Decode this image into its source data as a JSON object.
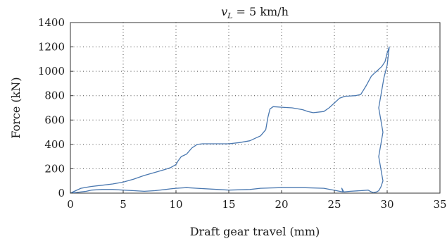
{
  "chart_data": {
    "type": "line",
    "title": "v_L = 5 km/h",
    "title_parts": {
      "symbol": "v",
      "subscript": "L",
      "rest": " = 5 km/h"
    },
    "xlabel": "Draft gear travel (mm)",
    "ylabel": "Force (kN)",
    "xlim": [
      0,
      35
    ],
    "ylim": [
      0,
      1400
    ],
    "xticks": [
      0,
      5,
      10,
      15,
      20,
      25,
      30,
      35
    ],
    "yticks": [
      0,
      200,
      400,
      600,
      800,
      1000,
      1200,
      1400
    ],
    "grid": true,
    "legend": "none",
    "series": [
      {
        "color": "#4a78b0",
        "x": [
          0,
          0.5,
          1,
          2,
          3,
          4,
          5,
          6,
          7,
          8,
          9,
          9.5,
          10,
          10.2,
          10.5,
          11,
          11.5,
          12,
          12.5,
          13,
          14,
          15,
          16,
          17,
          17.5,
          18,
          18.5,
          18.7,
          18.9,
          19.2,
          20,
          21,
          22,
          22.5,
          23,
          24,
          24.5,
          25,
          25.5,
          26,
          27,
          27.5,
          28,
          28.5,
          28.8,
          29,
          29.5,
          29.8,
          30,
          30.2,
          30.2,
          30,
          29.7,
          29.4,
          29.2,
          29.4,
          29.6,
          29.4,
          29.2,
          29.4,
          29.6,
          29.4,
          29.2,
          29,
          28.7,
          28.5,
          28.2,
          27.5,
          26.5,
          25.9,
          25.7,
          25.8,
          25.5,
          25.2,
          24,
          22,
          20,
          18,
          17,
          15,
          14,
          12,
          11,
          10,
          9.5,
          9,
          8,
          7,
          6,
          5,
          4,
          3,
          2,
          1.5,
          1,
          0.5,
          0
        ],
        "y": [
          0,
          20,
          40,
          55,
          65,
          75,
          90,
          115,
          145,
          170,
          195,
          210,
          235,
          265,
          300,
          320,
          370,
          400,
          405,
          405,
          405,
          405,
          415,
          430,
          450,
          470,
          520,
          620,
          690,
          710,
          705,
          700,
          685,
          670,
          660,
          670,
          700,
          740,
          780,
          795,
          800,
          810,
          880,
          960,
          985,
          1000,
          1040,
          1080,
          1150,
          1200,
          1200,
          1050,
          950,
          800,
          700,
          600,
          500,
          400,
          300,
          200,
          100,
          50,
          20,
          10,
          5,
          10,
          25,
          20,
          15,
          10,
          40,
          10,
          15,
          20,
          40,
          45,
          45,
          40,
          30,
          25,
          30,
          40,
          45,
          40,
          35,
          30,
          20,
          15,
          20,
          25,
          30,
          30,
          25,
          15,
          10,
          5,
          0
        ]
      }
    ]
  }
}
